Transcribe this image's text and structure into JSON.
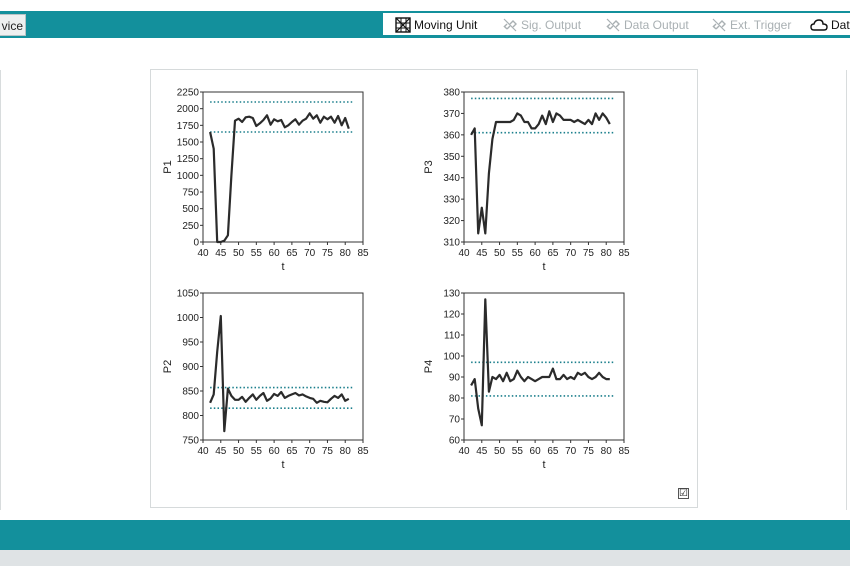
{
  "header": {
    "device_tab_label": "vice",
    "toolbar": [
      {
        "label": "Moving Unit",
        "icon": "grid-move-icon",
        "state": "active"
      },
      {
        "label": "Sig. Output",
        "icon": "link-broken-icon",
        "state": "disabled"
      },
      {
        "label": "Data Output",
        "icon": "link-broken-icon",
        "state": "disabled"
      },
      {
        "label": "Ext. Trigger",
        "icon": "link-broken-icon",
        "state": "disabled"
      },
      {
        "label": "Data",
        "icon": "cloud-icon",
        "state": "active"
      }
    ]
  },
  "colors": {
    "teal": "#13909c",
    "series": "#2b2b2b",
    "limit": "#1b7f8c"
  },
  "chart_data": [
    {
      "type": "line",
      "ylabel": "P1",
      "xlabel": "t",
      "xlim": [
        40,
        85
      ],
      "ylim": [
        0,
        2250
      ],
      "xticks": [
        40,
        45,
        50,
        55,
        60,
        65,
        70,
        75,
        80,
        85
      ],
      "yticks": [
        0,
        250,
        500,
        750,
        1000,
        1250,
        1500,
        1750,
        2000,
        2250
      ],
      "limits": [
        2100,
        1650
      ],
      "x": [
        42,
        43,
        44,
        45,
        46,
        47,
        48,
        49,
        50,
        51,
        52,
        53,
        54,
        55,
        56,
        57,
        58,
        59,
        60,
        61,
        62,
        63,
        64,
        65,
        66,
        67,
        68,
        69,
        70,
        71,
        72,
        73,
        74,
        75,
        76,
        77,
        78,
        79,
        80,
        81
      ],
      "y": [
        1650,
        1400,
        0,
        0,
        20,
        100,
        1000,
        1820,
        1850,
        1800,
        1870,
        1880,
        1860,
        1740,
        1780,
        1830,
        1900,
        1760,
        1840,
        1810,
        1830,
        1720,
        1750,
        1800,
        1840,
        1760,
        1820,
        1850,
        1930,
        1850,
        1900,
        1790,
        1880,
        1840,
        1880,
        1790,
        1890,
        1750,
        1860,
        1700
      ]
    },
    {
      "type": "line",
      "ylabel": "P3",
      "xlabel": "t",
      "xlim": [
        40,
        85
      ],
      "ylim": [
        310,
        380
      ],
      "xticks": [
        40,
        45,
        50,
        55,
        60,
        65,
        70,
        75,
        80,
        85
      ],
      "yticks": [
        310,
        320,
        330,
        340,
        350,
        360,
        370,
        380
      ],
      "limits": [
        377,
        361
      ],
      "x": [
        42,
        43,
        44,
        45,
        46,
        47,
        48,
        49,
        50,
        51,
        52,
        53,
        54,
        55,
        56,
        57,
        58,
        59,
        60,
        61,
        62,
        63,
        64,
        65,
        66,
        67,
        68,
        69,
        70,
        71,
        72,
        73,
        74,
        75,
        76,
        77,
        78,
        79,
        80,
        81
      ],
      "y": [
        360,
        363,
        314,
        326,
        314,
        342,
        358,
        366,
        366,
        366,
        366,
        366,
        367,
        370,
        369,
        366,
        366,
        363,
        363,
        365,
        369,
        365,
        371,
        366,
        370,
        369,
        367,
        367,
        367,
        366,
        367,
        366,
        365,
        367,
        365,
        370,
        367,
        370,
        368,
        365
      ]
    },
    {
      "type": "line",
      "ylabel": "P2",
      "xlabel": "t",
      "xlim": [
        40,
        85
      ],
      "ylim": [
        750,
        1050
      ],
      "xticks": [
        40,
        45,
        50,
        55,
        60,
        65,
        70,
        75,
        80,
        85
      ],
      "yticks": [
        750,
        800,
        850,
        900,
        950,
        1000,
        1050
      ],
      "limits": [
        857,
        815
      ],
      "x": [
        42,
        43,
        44,
        45,
        46,
        47,
        48,
        49,
        50,
        51,
        52,
        53,
        54,
        55,
        56,
        57,
        58,
        59,
        60,
        61,
        62,
        63,
        64,
        65,
        66,
        67,
        68,
        69,
        70,
        71,
        72,
        73,
        74,
        75,
        76,
        77,
        78,
        79,
        80,
        81
      ],
      "y": [
        826,
        843,
        930,
        1003,
        768,
        855,
        840,
        832,
        832,
        838,
        828,
        836,
        843,
        832,
        840,
        846,
        830,
        835,
        844,
        840,
        848,
        836,
        840,
        843,
        846,
        841,
        843,
        839,
        836,
        834,
        826,
        830,
        828,
        827,
        834,
        840,
        836,
        843,
        830,
        834
      ]
    },
    {
      "type": "line",
      "ylabel": "P4",
      "xlabel": "t",
      "xlim": [
        40,
        85
      ],
      "ylim": [
        60,
        130
      ],
      "xticks": [
        40,
        45,
        50,
        55,
        60,
        65,
        70,
        75,
        80,
        85
      ],
      "yticks": [
        60,
        70,
        80,
        90,
        100,
        110,
        120,
        130
      ],
      "limits": [
        97,
        81
      ],
      "x": [
        42,
        43,
        44,
        45,
        46,
        47,
        48,
        49,
        50,
        51,
        52,
        53,
        54,
        55,
        56,
        57,
        58,
        59,
        60,
        61,
        62,
        63,
        64,
        65,
        66,
        67,
        68,
        69,
        70,
        71,
        72,
        73,
        74,
        75,
        76,
        77,
        78,
        79,
        80,
        81
      ],
      "y": [
        86,
        89,
        75,
        67,
        127,
        83,
        90,
        89,
        91,
        88,
        92,
        88,
        89,
        93,
        90,
        88,
        90,
        89,
        88,
        89,
        90,
        90,
        90,
        94,
        89,
        89,
        91,
        89,
        90,
        89,
        92,
        91,
        92,
        90,
        89,
        90,
        92,
        90,
        89,
        89
      ]
    }
  ],
  "checkbox_checked": true
}
